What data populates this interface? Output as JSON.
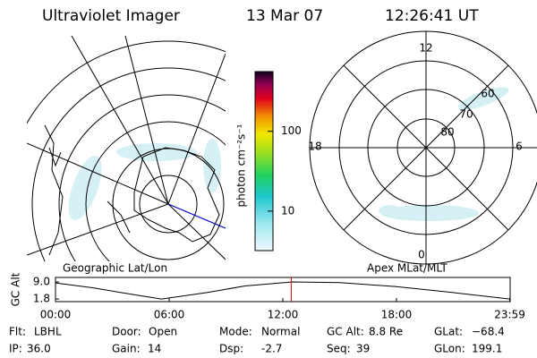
{
  "header": {
    "title": "Ultraviolet Imager",
    "date": "13 Mar 07",
    "time": "12:26:41 UT"
  },
  "colorbar": {
    "label": "photon cm⁻²s⁻¹",
    "log": true,
    "lim": [
      3.2,
      560
    ],
    "ticks": [
      10,
      100
    ]
  },
  "left_panel": {
    "caption": "Geographic Lat/Lon"
  },
  "right_panel": {
    "caption": "Apex MLat/MLT",
    "mlt_labels": [
      "12",
      "18",
      "6",
      "0"
    ],
    "mlat_labels": [
      "80",
      "70",
      "60"
    ]
  },
  "altitude": {
    "ylabel": "GC Alt",
    "ylim": [
      0.7,
      10.9
    ],
    "yticks": [
      {
        "value": 9,
        "label": "9.0"
      },
      {
        "value": 1.8,
        "label": "1.8"
      }
    ],
    "xlim": [
      0,
      24
    ],
    "xticks": [
      {
        "value": 0,
        "label": "00:00"
      },
      {
        "value": 6,
        "label": "06:00"
      },
      {
        "value": 12,
        "label": "12:00"
      },
      {
        "value": 18,
        "label": "18:00"
      },
      {
        "value": 23.98,
        "label": "23:59"
      }
    ],
    "x": [
      0,
      2,
      4,
      5.6,
      8,
      10,
      12.5,
      15,
      18,
      21,
      23.98
    ],
    "values": [
      8.6,
      6.5,
      3.8,
      1.8,
      4.5,
      7.3,
      9.0,
      8.7,
      7.0,
      4.5,
      1.8
    ],
    "marker": 12.445
  },
  "footer": {
    "rows": [
      [
        {
          "label": "Flt:",
          "value": "LBHL"
        },
        {
          "label": "Door:",
          "value": "Open"
        },
        {
          "label": "Mode:",
          "value": "Normal"
        },
        {
          "label": "GC Alt:",
          "value": "8.8 Re"
        },
        {
          "label": "GLat:",
          "value": "−68.4"
        }
      ],
      [
        {
          "label": "IP:",
          "value": "36.0"
        },
        {
          "label": "Gain:",
          "value": "14"
        },
        {
          "label": "Dsp:",
          "value": "-2.7"
        },
        {
          "label": "Seq:",
          "value": "39"
        },
        {
          "label": "GLon:",
          "value": "199.1"
        }
      ]
    ]
  }
}
